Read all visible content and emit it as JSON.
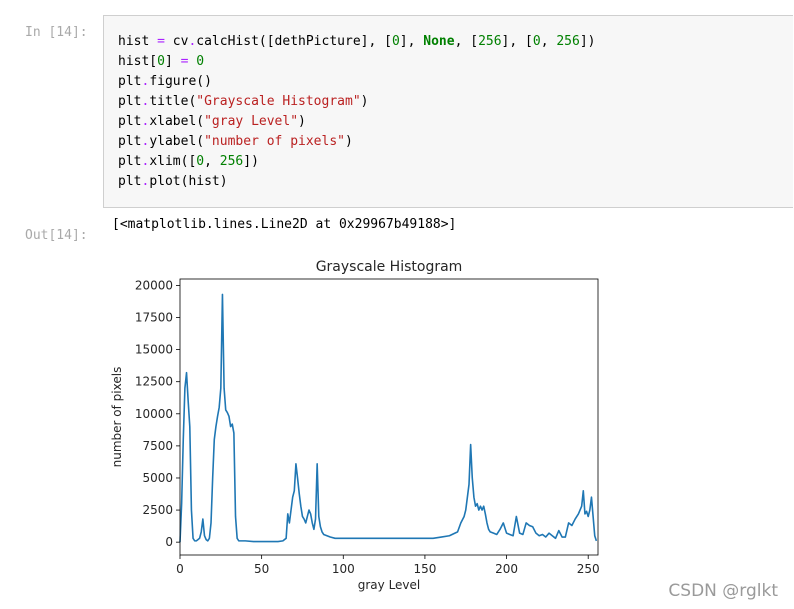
{
  "cell_in": {
    "prompt": "In [14]:",
    "code": [
      [
        {
          "t": "hist "
        },
        {
          "t": "=",
          "c": "op"
        },
        {
          "t": " cv"
        },
        {
          "t": ".",
          "c": "op"
        },
        {
          "t": "calcHist([dethPicture], ["
        },
        {
          "t": "0",
          "c": "num"
        },
        {
          "t": "], "
        },
        {
          "t": "None",
          "c": "kw"
        },
        {
          "t": ", ["
        },
        {
          "t": "256",
          "c": "num"
        },
        {
          "t": "], ["
        },
        {
          "t": "0",
          "c": "num"
        },
        {
          "t": ", "
        },
        {
          "t": "256",
          "c": "num"
        },
        {
          "t": "])"
        }
      ],
      [
        {
          "t": "hist["
        },
        {
          "t": "0",
          "c": "num"
        },
        {
          "t": "] "
        },
        {
          "t": "=",
          "c": "op"
        },
        {
          "t": " "
        },
        {
          "t": "0",
          "c": "num"
        }
      ],
      [
        {
          "t": "plt"
        },
        {
          "t": ".",
          "c": "op"
        },
        {
          "t": "figure()"
        }
      ],
      [
        {
          "t": "plt"
        },
        {
          "t": ".",
          "c": "op"
        },
        {
          "t": "title("
        },
        {
          "t": "\"Grayscale Histogram\"",
          "c": "str"
        },
        {
          "t": ")"
        }
      ],
      [
        {
          "t": "plt"
        },
        {
          "t": ".",
          "c": "op"
        },
        {
          "t": "xlabel("
        },
        {
          "t": "\"gray Level\"",
          "c": "str"
        },
        {
          "t": ")"
        }
      ],
      [
        {
          "t": "plt"
        },
        {
          "t": ".",
          "c": "op"
        },
        {
          "t": "ylabel("
        },
        {
          "t": "\"number of pixels\"",
          "c": "str"
        },
        {
          "t": ")"
        }
      ],
      [
        {
          "t": "plt"
        },
        {
          "t": ".",
          "c": "op"
        },
        {
          "t": "xlim(["
        },
        {
          "t": "0",
          "c": "num"
        },
        {
          "t": ", "
        },
        {
          "t": "256",
          "c": "num"
        },
        {
          "t": "])"
        }
      ],
      [
        {
          "t": "plt"
        },
        {
          "t": ".",
          "c": "op"
        },
        {
          "t": "plot(hist)"
        }
      ]
    ]
  },
  "cell_out": {
    "prompt": "Out[14]:",
    "text": "[<matplotlib.lines.Line2D at 0x29967b49188>]"
  },
  "chart_data": {
    "type": "line",
    "title": "Grayscale Histogram",
    "xlabel": "gray Level",
    "ylabel": "number of pixels",
    "xlim": [
      0,
      256
    ],
    "ylim": [
      -1000,
      20500
    ],
    "xticks": [
      0,
      50,
      100,
      150,
      200,
      250
    ],
    "yticks": [
      0,
      2500,
      5000,
      7500,
      10000,
      12500,
      15000,
      17500,
      20000
    ],
    "line_color": "#1f77b4",
    "series": [
      {
        "x": [
          0,
          1,
          2,
          3,
          4,
          5,
          6,
          7,
          8,
          9,
          10,
          11,
          12,
          13,
          14,
          15,
          16,
          17,
          18,
          19,
          20,
          21,
          22,
          23,
          24,
          25,
          26,
          27,
          28,
          29,
          30,
          31,
          32,
          33,
          34,
          35,
          36,
          37,
          38,
          40,
          45,
          50,
          55,
          60,
          63,
          65,
          66,
          67,
          68,
          69,
          70,
          71,
          72,
          73,
          74,
          75,
          76,
          77,
          78,
          79,
          80,
          81,
          82,
          83,
          84,
          85,
          86,
          87,
          88,
          90,
          92,
          95,
          100,
          105,
          110,
          115,
          120,
          125,
          130,
          135,
          140,
          145,
          150,
          155,
          160,
          165,
          170,
          172,
          174,
          175,
          176,
          177,
          178,
          179,
          180,
          181,
          182,
          183,
          184,
          185,
          186,
          187,
          188,
          189,
          190,
          192,
          194,
          196,
          198,
          200,
          202,
          204,
          206,
          208,
          210,
          212,
          214,
          216,
          218,
          220,
          222,
          224,
          226,
          228,
          230,
          232,
          234,
          236,
          238,
          240,
          242,
          244,
          245,
          246,
          247,
          248,
          249,
          250,
          251,
          252,
          253,
          254,
          255
        ],
        "y": [
          0,
          3000,
          8000,
          12000,
          13200,
          11000,
          9000,
          2500,
          300,
          100,
          100,
          200,
          300,
          800,
          1800,
          500,
          200,
          100,
          300,
          1500,
          5000,
          8000,
          9000,
          9800,
          10500,
          12000,
          19300,
          12000,
          10300,
          10100,
          9800,
          9000,
          9200,
          8500,
          2000,
          300,
          100,
          100,
          100,
          100,
          50,
          50,
          50,
          50,
          100,
          300,
          2200,
          1500,
          2500,
          3500,
          4000,
          6100,
          5000,
          3800,
          2800,
          2000,
          1800,
          1500,
          2000,
          2500,
          2200,
          1500,
          1000,
          1800,
          6100,
          2000,
          1200,
          800,
          600,
          500,
          400,
          300,
          300,
          300,
          300,
          300,
          300,
          300,
          300,
          300,
          300,
          300,
          300,
          300,
          400,
          500,
          800,
          1500,
          2000,
          2500,
          3500,
          4500,
          7600,
          5000,
          3500,
          2800,
          3000,
          2500,
          2800,
          2500,
          2800,
          2200,
          1500,
          1000,
          800,
          700,
          600,
          1000,
          1500,
          700,
          600,
          500,
          2000,
          700,
          600,
          1500,
          1300,
          1200,
          700,
          500,
          600,
          400,
          700,
          500,
          300,
          900,
          400,
          400,
          1500,
          1300,
          1800,
          2200,
          2500,
          2800,
          4000,
          2200,
          2400,
          2000,
          2500,
          3500,
          2000,
          500,
          100
        ]
      }
    ]
  },
  "watermark": "CSDN @rglkt"
}
